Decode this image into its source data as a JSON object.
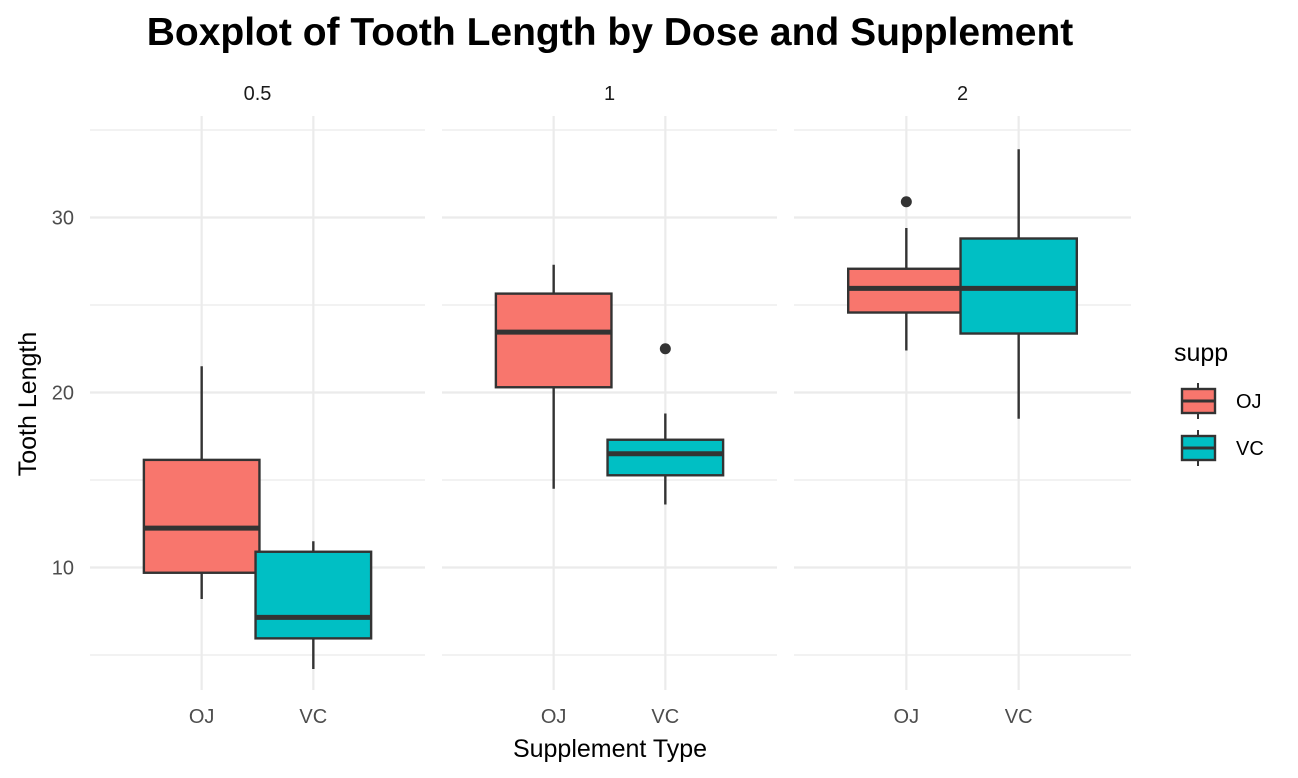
{
  "chart_data": {
    "type": "boxplot",
    "title": "Boxplot of Tooth Length by Dose and Supplement",
    "xlabel": "Supplement Type",
    "ylabel": "Tooth Length",
    "ylim": [
      3.0,
      35.8
    ],
    "y_ticks": [
      10,
      20,
      30
    ],
    "y_minor_ticks": [
      5,
      15,
      25,
      35
    ],
    "grid": true,
    "facet_label": "dose",
    "facets": [
      "0.5",
      "1",
      "2"
    ],
    "categories": [
      "OJ",
      "VC"
    ],
    "legend": {
      "title": "supp",
      "position": "right",
      "entries": [
        {
          "name": "OJ",
          "color": "#F8766D"
        },
        {
          "name": "VC",
          "color": "#00BFC4"
        }
      ]
    },
    "boxes": [
      {
        "facet": "0.5",
        "supp": "OJ",
        "min": 8.2,
        "q1": 9.7,
        "median": 12.25,
        "q3": 16.15,
        "max": 21.5,
        "outliers": []
      },
      {
        "facet": "0.5",
        "supp": "VC",
        "min": 4.2,
        "q1": 5.95,
        "median": 7.15,
        "q3": 10.9,
        "max": 11.5,
        "outliers": []
      },
      {
        "facet": "1",
        "supp": "OJ",
        "min": 14.5,
        "q1": 20.3,
        "median": 23.45,
        "q3": 25.65,
        "max": 27.3,
        "outliers": []
      },
      {
        "facet": "1",
        "supp": "VC",
        "min": 13.6,
        "q1": 15.27,
        "median": 16.5,
        "q3": 17.3,
        "max": 18.8,
        "outliers": [
          22.5
        ]
      },
      {
        "facet": "2",
        "supp": "OJ",
        "min": 22.4,
        "q1": 24.57,
        "median": 25.95,
        "q3": 27.07,
        "max": 29.4,
        "outliers": [
          30.9
        ]
      },
      {
        "facet": "2",
        "supp": "VC",
        "min": 18.5,
        "q1": 23.37,
        "median": 25.95,
        "q3": 28.8,
        "max": 33.9,
        "outliers": []
      }
    ]
  }
}
